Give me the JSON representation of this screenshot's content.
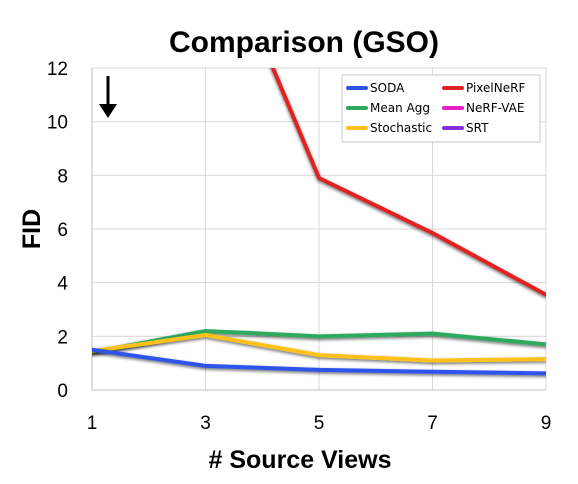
{
  "chart_data": {
    "type": "line",
    "title": "Comparison (GSO)",
    "xlabel": "# Source Views",
    "ylabel": "FID",
    "x": [
      1,
      3,
      5,
      7,
      9
    ],
    "x_ticks": [
      "1",
      "3",
      "5",
      "7",
      "9"
    ],
    "y_ticks": [
      "0",
      "2",
      "4",
      "6",
      "8",
      "10",
      "12"
    ],
    "xlim": [
      1,
      9
    ],
    "ylim": [
      0,
      12
    ],
    "grid": true,
    "legend_position": "top-right",
    "annotation": "lower is better arrow",
    "series": [
      {
        "name": "SODA",
        "color": "#2f54eb",
        "values": [
          1.5,
          0.9,
          0.75,
          0.68,
          0.62
        ]
      },
      {
        "name": "Mean Agg",
        "color": "#2eaa5e",
        "values": [
          1.4,
          2.2,
          2.0,
          2.1,
          1.7
        ]
      },
      {
        "name": "Stochastic",
        "color": "#ffc21a",
        "values": [
          1.45,
          2.05,
          1.3,
          1.1,
          1.15
        ]
      },
      {
        "name": "PixelNeRF",
        "color": "#e02424",
        "values": [
          null,
          18.0,
          7.9,
          5.85,
          3.55
        ]
      },
      {
        "name": "NeRF-VAE",
        "color": "#e91ec8",
        "values": [
          null,
          null,
          null,
          null,
          null
        ]
      },
      {
        "name": "SRT",
        "color": "#8a2be2",
        "values": [
          null,
          null,
          null,
          null,
          null
        ]
      }
    ]
  }
}
